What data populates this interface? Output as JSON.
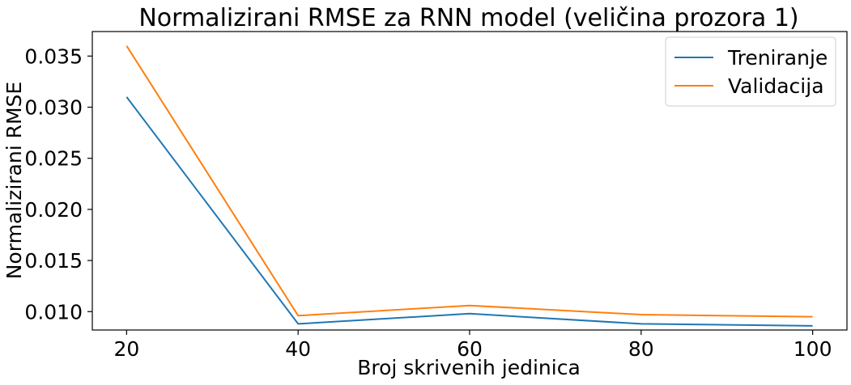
{
  "chart_data": {
    "type": "line",
    "title": "Normalizirani RMSE za RNN model (veličina prozora 1)",
    "xlabel": "Broj skrivenih jedinica",
    "ylabel": "Normalizirani RMSE",
    "x": [
      20,
      40,
      60,
      80,
      100
    ],
    "x_ticks": [
      "20",
      "40",
      "60",
      "80",
      "100"
    ],
    "y_ticks": [
      "0.010",
      "0.015",
      "0.020",
      "0.025",
      "0.030",
      "0.035"
    ],
    "y_tick_values": [
      0.01,
      0.015,
      0.02,
      0.025,
      0.03,
      0.035
    ],
    "xlim": [
      16,
      104
    ],
    "ylim": [
      0.0082,
      0.0374
    ],
    "grid": false,
    "legend_position": "top-right",
    "series": [
      {
        "name": "Treniranje",
        "color": "#1f77b4",
        "values": [
          0.031,
          0.0088,
          0.0098,
          0.0088,
          0.0086
        ]
      },
      {
        "name": "Validacija",
        "color": "#ff7f0e",
        "values": [
          0.036,
          0.0096,
          0.0106,
          0.0097,
          0.0095
        ]
      }
    ]
  }
}
